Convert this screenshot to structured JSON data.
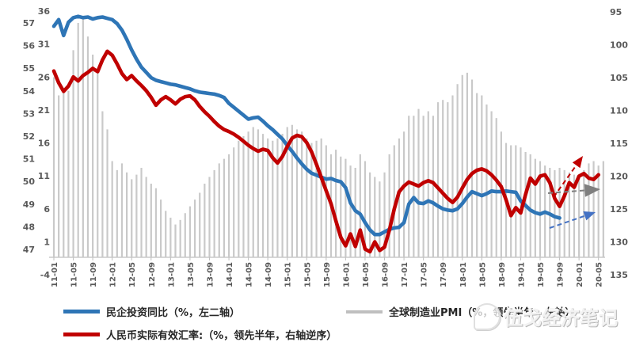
{
  "watermark": {
    "text": "伍戈经济笔记"
  },
  "legend": {
    "items": [
      {
        "label": "民企投资同比（%，左二轴）",
        "color": "#2E75B6",
        "kind": "line"
      },
      {
        "label": "全球制造业PMI（%，领先半年，左轴）",
        "color": "#BFBFBF",
        "kind": "bar"
      },
      {
        "label": "人民币实际有效汇率:（%，领先半年，右轴逆序）",
        "color": "#C00000",
        "kind": "line"
      }
    ]
  },
  "colors": {
    "blue_line": "#2E75B6",
    "red_line": "#C00000",
    "bar_gray": "#C9C9C9",
    "axis_text": "#595959",
    "axis_line": "#BFBFBF",
    "arrow_red": "#C00000",
    "arrow_gray": "#7F7F7F",
    "arrow_blue": "#4472C4"
  },
  "chart_data": {
    "type": "combo",
    "title": "",
    "x_start_month": "2011-01",
    "x_tick_labels": [
      "2011-01",
      "2011-05",
      "2011-09",
      "2012-01",
      "2012-05",
      "2012-09",
      "2013-01",
      "2013-05",
      "2013-09",
      "2014-01",
      "2014-05",
      "2014-09",
      "2015-01",
      "2015-05",
      "2015-09",
      "2016-01",
      "2016-05",
      "2016-09",
      "2017-01",
      "2017-05",
      "2017-09",
      "2018-01",
      "2018-05",
      "2018-09",
      "2019-01",
      "2019-05",
      "2019-09",
      "2020-01",
      "2020-05"
    ],
    "axes": {
      "left_pmi": {
        "ticks": [
          57,
          56,
          55,
          54,
          53,
          52,
          51,
          50,
          49,
          48,
          47
        ],
        "min": 47,
        "max": 57,
        "reversed": false
      },
      "left_investment": {
        "ticks": [
          36,
          31,
          26,
          21,
          16,
          11,
          6,
          1,
          -4
        ],
        "min": -4,
        "max": 36,
        "reversed": false
      },
      "right_reer": {
        "ticks": [
          95,
          100,
          105,
          110,
          115,
          120,
          125,
          130,
          135
        ],
        "min": 95,
        "max": 135,
        "reversed": true
      }
    },
    "series": [
      {
        "name": "全球制造业PMI（%，领先半年，左轴）",
        "type": "bar",
        "axis": "left_pmi",
        "color": "#C9C9C9",
        "values": [
          54.6,
          53.8,
          54.1,
          54.0,
          55.8,
          57.0,
          57.3,
          56.4,
          55.6,
          55.0,
          53.1,
          52.3,
          50.9,
          50.5,
          50.8,
          50.4,
          50.1,
          50.3,
          50.6,
          50.2,
          49.9,
          49.7,
          49.2,
          48.7,
          48.4,
          48.1,
          48.3,
          48.6,
          48.9,
          49.2,
          49.5,
          49.9,
          50.2,
          50.5,
          50.8,
          51.0,
          51.2,
          51.5,
          51.8,
          52.0,
          52.2,
          52.4,
          52.3,
          52.1,
          51.9,
          51.8,
          51.9,
          52.1,
          52.4,
          52.5,
          52.3,
          52.2,
          51.9,
          51.7,
          51.8,
          51.9,
          51.6,
          51.2,
          51.4,
          51.1,
          51.0,
          50.7,
          50.6,
          51.2,
          50.9,
          50.4,
          50.2,
          50.0,
          50.4,
          51.2,
          51.6,
          51.9,
          52.2,
          52.9,
          52.9,
          53.2,
          52.9,
          53.1,
          52.9,
          53.5,
          53.6,
          53.5,
          53.8,
          54.3,
          54.7,
          54.8,
          54.5,
          53.9,
          53.8,
          53.4,
          53.1,
          52.8,
          52.2,
          51.7,
          51.6,
          51.6,
          51.5,
          51.3,
          51.2,
          51.0,
          50.9,
          50.7,
          50.6,
          50.5,
          50.6,
          50.5,
          50.4,
          50.3,
          50.3,
          50.5,
          50.8,
          50.9,
          50.7,
          50.9
        ]
      },
      {
        "name": "民企投资同比（%，左二轴）",
        "type": "line",
        "axis": "left_investment",
        "color": "#2E75B6",
        "values": [
          33.7,
          34.7,
          32.3,
          34.3,
          35.0,
          35.2,
          35.0,
          35.1,
          34.8,
          35.0,
          35.1,
          34.9,
          34.7,
          34.1,
          33.1,
          31.7,
          30.1,
          28.7,
          27.5,
          26.7,
          25.9,
          25.5,
          25.3,
          25.1,
          24.9,
          24.8,
          24.6,
          24.4,
          24.2,
          23.9,
          23.7,
          23.6,
          23.5,
          23.4,
          23.2,
          22.9,
          22.0,
          21.4,
          20.8,
          20.2,
          19.6,
          19.8,
          19.9,
          19.3,
          18.6,
          18.0,
          17.3,
          16.6,
          15.6,
          14.7,
          13.7,
          12.8,
          12.0,
          11.4,
          11.1,
          10.8,
          10.5,
          10.6,
          10.3,
          10.1,
          9.2,
          6.9,
          5.7,
          5.2,
          3.9,
          2.8,
          2.1,
          2.1,
          2.5,
          2.9,
          3.1,
          3.2,
          3.9,
          6.7,
          7.7,
          6.9,
          6.8,
          7.2,
          6.9,
          6.4,
          6.0,
          5.8,
          5.7,
          6.0,
          6.8,
          7.8,
          8.6,
          8.3,
          8.0,
          8.3,
          8.7,
          8.6,
          8.6,
          8.7,
          8.6,
          8.5,
          7.2,
          6.5,
          5.8,
          5.4,
          5.2,
          5.5,
          5.2,
          4.8,
          4.6
        ]
      },
      {
        "name": "人民币实际有效汇率:（%，领先半年，右轴逆序）",
        "type": "line",
        "axis": "right_reer",
        "color": "#C00000",
        "values": [
          104.0,
          105.8,
          107.1,
          106.3,
          104.9,
          105.5,
          104.7,
          104.2,
          103.6,
          104.1,
          102.3,
          101.0,
          101.6,
          102.9,
          104.4,
          105.3,
          104.7,
          105.5,
          106.2,
          107.0,
          108.0,
          109.2,
          108.4,
          107.9,
          108.4,
          109.0,
          108.3,
          107.9,
          107.8,
          108.4,
          109.4,
          110.2,
          110.9,
          111.7,
          112.4,
          112.9,
          113.2,
          113.6,
          114.1,
          114.7,
          115.3,
          115.8,
          116.2,
          115.9,
          116.1,
          117.2,
          118.0,
          117.0,
          115.5,
          114.2,
          113.8,
          114.0,
          114.9,
          116.3,
          118.2,
          120.2,
          122.2,
          124.2,
          126.8,
          129.3,
          130.6,
          128.8,
          130.7,
          128.2,
          131.1,
          131.5,
          130.0,
          131.3,
          130.8,
          128.2,
          125.0,
          122.4,
          121.5,
          120.9,
          121.2,
          121.5,
          121.0,
          120.7,
          121.0,
          121.8,
          122.6,
          123.4,
          124.0,
          123.2,
          121.8,
          120.5,
          119.6,
          119.1,
          118.9,
          119.2,
          119.8,
          120.6,
          121.6,
          123.6,
          126.0,
          124.8,
          125.6,
          122.8,
          120.3,
          121.2,
          120.0,
          119.8,
          121.0,
          123.4,
          124.6,
          123.0,
          121.0,
          121.7,
          120.0,
          119.6,
          120.3,
          120.5,
          119.8
        ]
      }
    ],
    "annotations": [
      {
        "name": "red-up-forecast-arrow",
        "color": "#C00000",
        "x1": 699,
        "y1": 249,
        "x2": 736,
        "y2": 197,
        "head": 8
      },
      {
        "name": "gray-right-forecast-arrow",
        "color": "#7F7F7F",
        "x1": 692,
        "y1": 244,
        "x2": 758,
        "y2": 239,
        "head": 11
      },
      {
        "name": "blue-up-forecast-arrow",
        "color": "#4472C4",
        "x1": 694,
        "y1": 288,
        "x2": 752,
        "y2": 268,
        "head": 8
      }
    ]
  }
}
